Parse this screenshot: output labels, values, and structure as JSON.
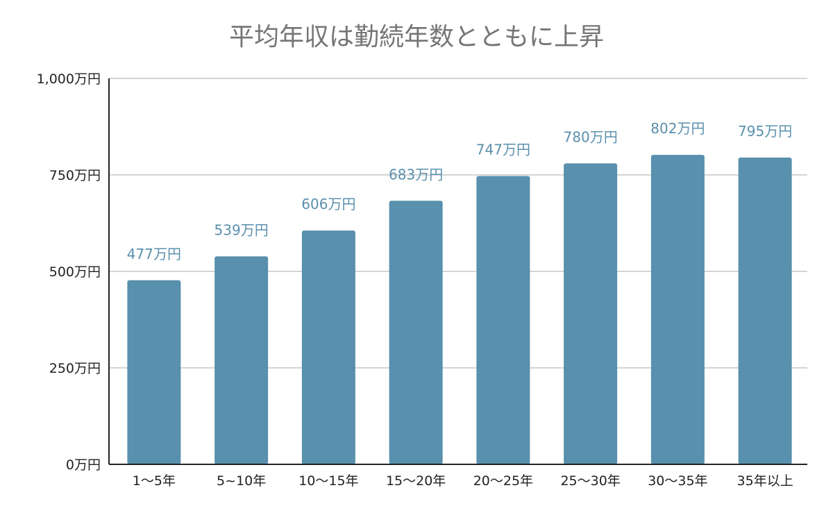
{
  "chart_data": {
    "type": "bar",
    "title": "平均年収は勤続年数とともに上昇",
    "xlabel": "",
    "ylabel": "",
    "categories": [
      "1～5年",
      "5~10年",
      "10～15年",
      "15～20年",
      "20～25年",
      "25～30年",
      "30～35年",
      "35年以上"
    ],
    "values": [
      477,
      539,
      606,
      683,
      747,
      780,
      802,
      795
    ],
    "data_labels": [
      "477万円",
      "539万円",
      "606万円",
      "683万円",
      "747万円",
      "780万円",
      "802万円",
      "795万円"
    ],
    "ylim": [
      0,
      1000
    ],
    "y_ticks": [
      0,
      250,
      500,
      750,
      1000
    ],
    "y_tick_labels": [
      "0万円",
      "250万円",
      "500万円",
      "750万円",
      "1,000万円"
    ],
    "grid": true,
    "legend": "none",
    "colors": {
      "bar": "#5890ad",
      "data_label": "#5a8fac",
      "title": "#757575",
      "gridline": "#c6c6c6",
      "axis": "#222222"
    }
  }
}
